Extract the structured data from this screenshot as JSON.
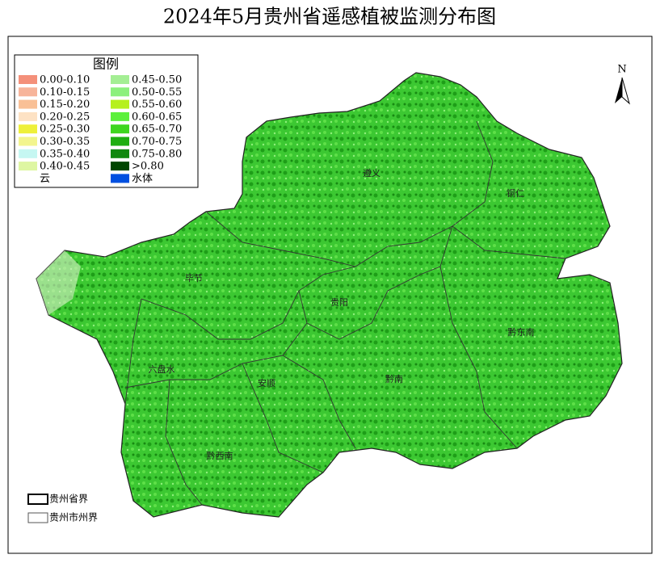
{
  "title": "2024年5月贵州省遥感植被监测分布图",
  "legend": {
    "title": "图例",
    "items": [
      {
        "label": "0.00-0.10",
        "color": "#f4907a"
      },
      {
        "label": "0.10-0.15",
        "color": "#f7b49a"
      },
      {
        "label": "0.15-0.20",
        "color": "#f9c096"
      },
      {
        "label": "0.20-0.25",
        "color": "#fde2c4"
      },
      {
        "label": "0.25-0.30",
        "color": "#eef03a"
      },
      {
        "label": "0.30-0.35",
        "color": "#f3f58e"
      },
      {
        "label": "0.35-0.40",
        "color": "#c6f7f2"
      },
      {
        "label": "0.40-0.45",
        "color": "#def6a2"
      },
      {
        "label": "云",
        "color": "#ffffff"
      },
      {
        "label": "0.45-0.50",
        "color": "#a4ee94"
      },
      {
        "label": "0.50-0.55",
        "color": "#8cf07c"
      },
      {
        "label": "0.55-0.60",
        "color": "#b6f01e"
      },
      {
        "label": "0.60-0.65",
        "color": "#5cf03c"
      },
      {
        "label": "0.65-0.70",
        "color": "#3ed61e"
      },
      {
        "label": "0.70-0.75",
        "color": "#1eae10"
      },
      {
        "label": "0.75-0.80",
        "color": "#10880e"
      },
      {
        "label": ">0.80",
        "color": "#004600"
      },
      {
        "label": "水体",
        "color": "#0050e0"
      }
    ]
  },
  "north": "N",
  "regions": [
    {
      "name": "遵义"
    },
    {
      "name": "铜仁"
    },
    {
      "name": "毕节"
    },
    {
      "name": "贵阳"
    },
    {
      "name": "黔东南"
    },
    {
      "name": "六盘水"
    },
    {
      "name": "安顺"
    },
    {
      "name": "黔南"
    },
    {
      "name": "黔西南"
    }
  ],
  "boundaries": {
    "province": "贵州省界",
    "prefecture": "贵州市州界"
  }
}
